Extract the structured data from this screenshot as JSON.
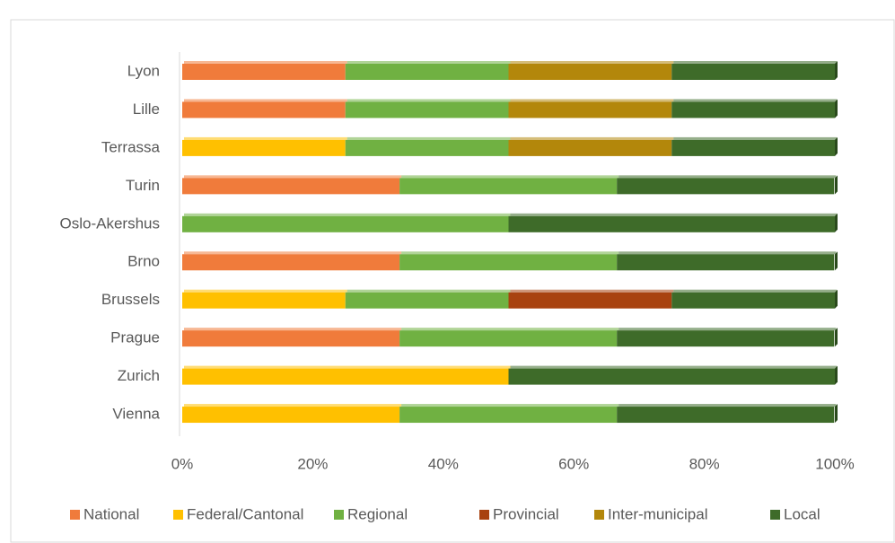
{
  "chart_data": {
    "type": "stacked_bar_horizontal",
    "categories": [
      "Lyon",
      "Lille",
      "Terrassa",
      "Turin",
      "Oslo-Akershus",
      "Brno",
      "Brussels",
      "Prague",
      "Zurich",
      "Vienna"
    ],
    "series": [
      {
        "name": "National",
        "color": "#f07b3b",
        "values": [
          25,
          25,
          null,
          33.3,
          null,
          33.3,
          null,
          33.3,
          null,
          null
        ]
      },
      {
        "name": "Federal/Cantonal",
        "color": "#ffc000",
        "values": [
          null,
          null,
          25,
          null,
          null,
          null,
          25,
          null,
          50,
          33.3
        ]
      },
      {
        "name": "Regional",
        "color": "#70b142",
        "values": [
          25,
          25,
          25,
          33.3,
          50,
          33.3,
          25,
          33.3,
          null,
          33.3
        ]
      },
      {
        "name": "Provincial",
        "color": "#a8420f",
        "values": [
          null,
          null,
          null,
          null,
          null,
          null,
          25,
          null,
          null,
          null
        ]
      },
      {
        "name": "Inter-municipal",
        "color": "#b3870b",
        "values": [
          25,
          25,
          25,
          null,
          null,
          null,
          null,
          null,
          null,
          null
        ]
      },
      {
        "name": "Local",
        "color": "#3e6b29",
        "values": [
          25,
          25,
          25,
          33.3,
          50,
          33.3,
          25,
          33.3,
          50,
          33.3
        ]
      }
    ],
    "xlim": [
      0,
      100
    ],
    "xticks": [
      {
        "value": 0,
        "label": "0%"
      },
      {
        "value": 20,
        "label": "20%"
      },
      {
        "value": 40,
        "label": "40%"
      },
      {
        "value": 60,
        "label": "60%"
      },
      {
        "value": 80,
        "label": "80%"
      },
      {
        "value": 100,
        "label": "100%"
      }
    ],
    "legend": "bottom"
  }
}
